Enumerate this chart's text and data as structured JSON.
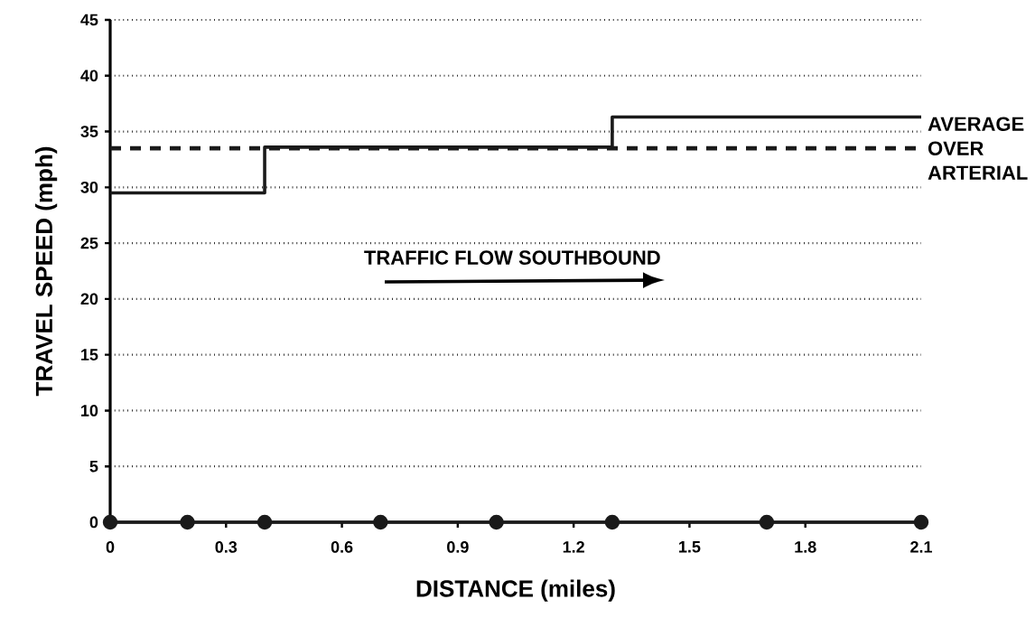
{
  "chart_data": {
    "type": "line",
    "xlabel": "DISTANCE (miles)",
    "ylabel": "TRAVEL SPEED (mph)",
    "annotations": [
      "TRAFFIC FLOW SOUTHBOUND"
    ],
    "series": [
      {
        "type": "step",
        "color": "#1a1a1a",
        "x": [
          0,
          0.4,
          1.3,
          2.1
        ],
        "values": [
          29.5,
          33.6,
          36.3,
          36.3
        ],
        "marker": "none"
      },
      {
        "color": "#1a1a1a",
        "x": [
          0,
          0.2,
          0.4,
          0.7,
          1.0,
          1.3,
          1.7,
          2.1
        ],
        "values": [
          0,
          0,
          0,
          0,
          0,
          0,
          0,
          0
        ],
        "marker": "circle"
      }
    ],
    "ref_lines": [
      {
        "axis": "y",
        "value": 33.5,
        "label": "AVERAGE OVER ARTERIAL",
        "line_style": "dashed",
        "color": "#1a1a1a"
      }
    ],
    "xlim": [
      0,
      2.1
    ],
    "ylim": [
      0,
      45
    ],
    "xticks": [
      0,
      0.3,
      0.6,
      0.9,
      1.2,
      1.5,
      1.8,
      2.1
    ],
    "yticks": [
      0,
      5,
      10,
      15,
      20,
      25,
      30,
      35,
      40,
      45
    ],
    "grid": "y"
  }
}
